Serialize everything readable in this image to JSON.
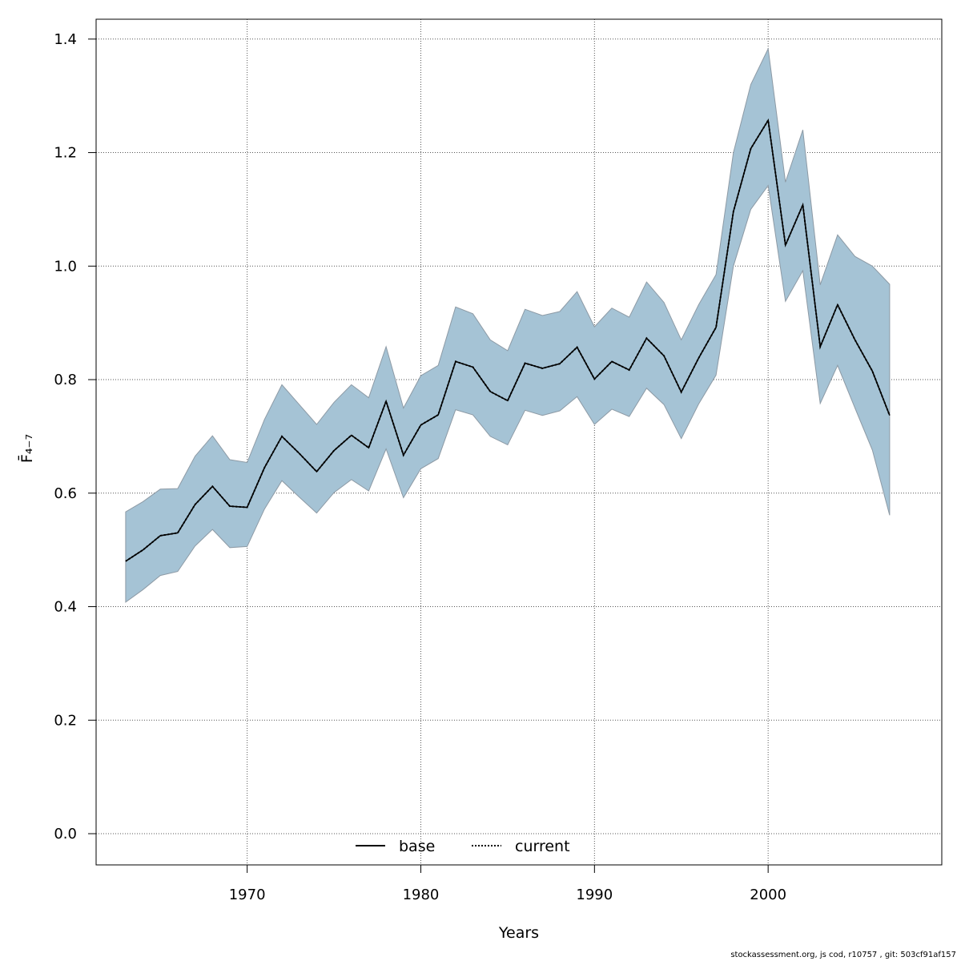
{
  "chart_data": {
    "type": "area",
    "title": "",
    "xlabel": "Years",
    "ylabel": "F̄₄₋₇",
    "xlim": [
      1961.3,
      2010
    ],
    "ylim": [
      -0.055,
      1.435
    ],
    "xticks": [
      1970,
      1980,
      1990,
      2000
    ],
    "yticks": [
      0.0,
      0.2,
      0.4,
      0.6,
      0.8,
      1.0,
      1.2,
      1.4
    ],
    "grid": true,
    "legend_position": "bottom-center",
    "legend": [
      {
        "label": "base",
        "style": "solid",
        "color": "#000000"
      },
      {
        "label": "current",
        "style": "dotted",
        "color": "#000000"
      }
    ],
    "band_color": "#a5c3d5",
    "band_edge_color": "#8d9aa5",
    "x": [
      1963,
      1964,
      1965,
      1966,
      1967,
      1968,
      1969,
      1970,
      1971,
      1972,
      1973,
      1974,
      1975,
      1976,
      1977,
      1978,
      1979,
      1980,
      1981,
      1982,
      1983,
      1984,
      1985,
      1986,
      1987,
      1988,
      1989,
      1990,
      1991,
      1992,
      1993,
      1994,
      1995,
      1996,
      1997,
      1998,
      1999,
      2000,
      2001,
      2002,
      2003,
      2004,
      2005,
      2006,
      2007
    ],
    "series": [
      {
        "name": "base",
        "style": "solid",
        "values": [
          0.48,
          0.5,
          0.525,
          0.53,
          0.58,
          0.612,
          0.577,
          0.575,
          0.645,
          0.7,
          0.67,
          0.638,
          0.675,
          0.702,
          0.68,
          0.762,
          0.667,
          0.72,
          0.738,
          0.832,
          0.822,
          0.779,
          0.763,
          0.829,
          0.82,
          0.828,
          0.857,
          0.801,
          0.832,
          0.817,
          0.873,
          0.842,
          0.778,
          0.838,
          0.892,
          1.096,
          1.207,
          1.257,
          1.037,
          1.108,
          0.858,
          0.932,
          0.87,
          0.815,
          0.737
        ]
      },
      {
        "name": "current",
        "style": "dotted",
        "values": [
          0.48,
          0.5,
          0.525,
          0.53,
          0.58,
          0.612,
          0.577,
          0.575,
          0.645,
          0.7,
          0.67,
          0.638,
          0.675,
          0.702,
          0.68,
          0.762,
          0.667,
          0.72,
          0.738,
          0.832,
          0.822,
          0.779,
          0.763,
          0.829,
          0.82,
          0.828,
          0.857,
          0.801,
          0.832,
          0.817,
          0.873,
          0.842,
          0.778,
          0.838,
          0.892,
          1.096,
          1.207,
          1.257,
          1.037,
          1.108,
          0.858,
          0.932,
          0.87,
          0.815,
          0.737
        ]
      }
    ],
    "band_upper": [
      0.567,
      0.585,
      0.607,
      0.608,
      0.665,
      0.701,
      0.659,
      0.654,
      0.73,
      0.791,
      0.756,
      0.721,
      0.76,
      0.791,
      0.768,
      0.858,
      0.75,
      0.807,
      0.825,
      0.928,
      0.916,
      0.87,
      0.851,
      0.924,
      0.913,
      0.92,
      0.955,
      0.893,
      0.926,
      0.91,
      0.972,
      0.936,
      0.87,
      0.932,
      0.985,
      1.2,
      1.32,
      1.383,
      1.148,
      1.24,
      0.967,
      1.055,
      1.017,
      1.0,
      0.968
    ],
    "band_lower": [
      0.408,
      0.43,
      0.455,
      0.462,
      0.507,
      0.536,
      0.504,
      0.506,
      0.572,
      0.622,
      0.593,
      0.565,
      0.601,
      0.624,
      0.604,
      0.678,
      0.592,
      0.643,
      0.661,
      0.747,
      0.738,
      0.7,
      0.685,
      0.746,
      0.737,
      0.745,
      0.77,
      0.721,
      0.748,
      0.735,
      0.785,
      0.756,
      0.696,
      0.757,
      0.808,
      1.0,
      1.1,
      1.142,
      0.938,
      0.992,
      0.758,
      0.825,
      0.75,
      0.676,
      0.561
    ]
  },
  "footer_text": "stockassessment.org, js cod, r10757 , git: 503cf91af157"
}
